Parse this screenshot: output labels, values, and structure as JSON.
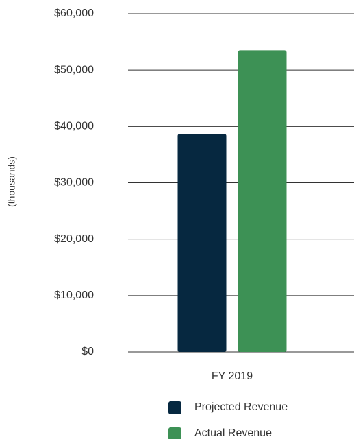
{
  "chart_data": {
    "type": "bar",
    "y_label": "(thousands)",
    "categories": [
      "FY 2019"
    ],
    "series": [
      {
        "name": "Projected Revenue",
        "color": "#062840",
        "values": [
          38700
        ]
      },
      {
        "name": "Actual Revenue",
        "color": "#3d9155",
        "values": [
          53500
        ]
      }
    ],
    "ylim": [
      0,
      60000
    ],
    "yticks": [
      {
        "value": 0,
        "label": "$0"
      },
      {
        "value": 10000,
        "label": "$10,000"
      },
      {
        "value": 20000,
        "label": "$20,000"
      },
      {
        "value": 30000,
        "label": "$30,000"
      },
      {
        "value": 40000,
        "label": "$40,000"
      },
      {
        "value": 50000,
        "label": "$50,000"
      },
      {
        "value": 60000,
        "label": "$60,000"
      }
    ],
    "grid": true
  }
}
